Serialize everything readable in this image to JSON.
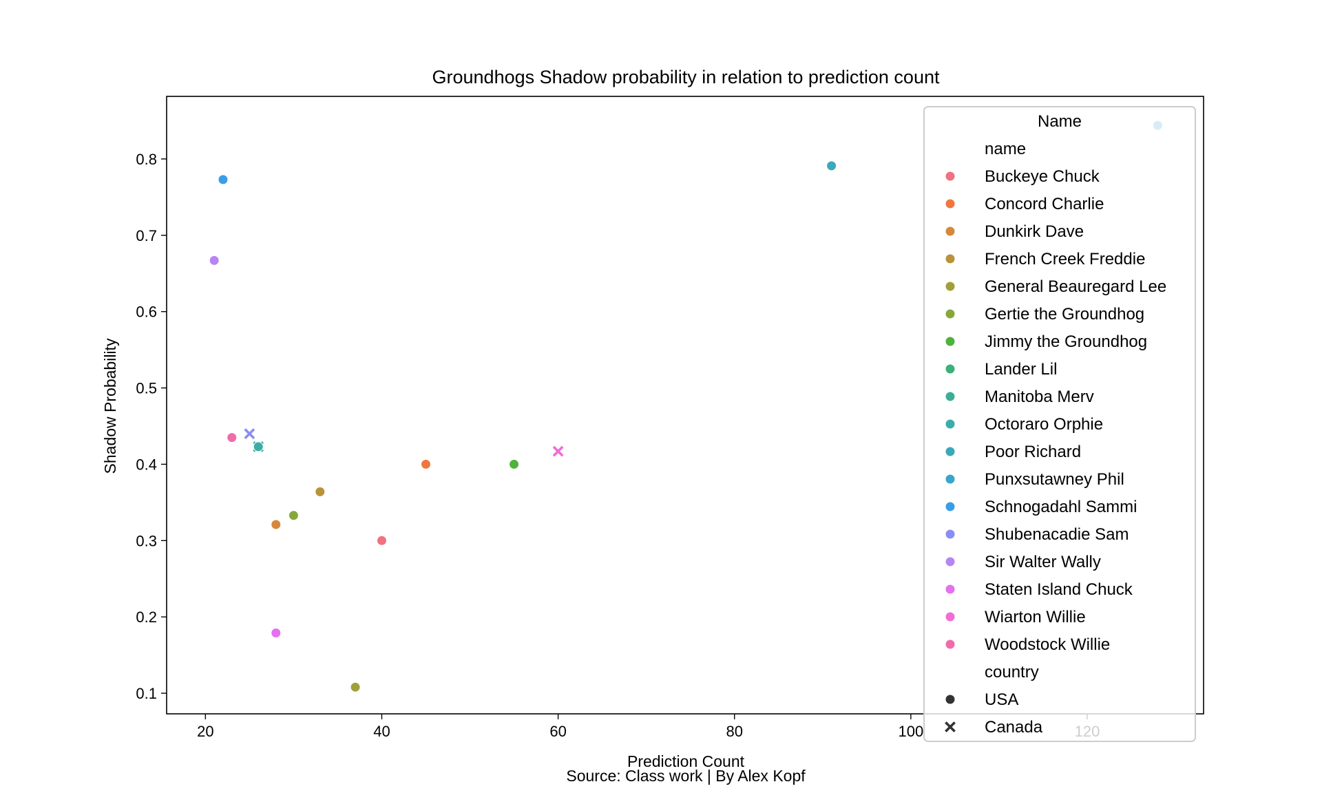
{
  "chart_data": {
    "type": "scatter",
    "title": "Groundhogs Shadow probability in relation to prediction count",
    "xlabel": "Prediction Count",
    "ylabel": "Shadow Probability",
    "caption": "Source: Class work | By Alex Kopf",
    "xlim": [
      15.6,
      133.2
    ],
    "ylim": [
      0.073,
      0.882
    ],
    "xticks": [
      20,
      40,
      60,
      80,
      100,
      120
    ],
    "yticks": [
      0.1,
      0.2,
      0.3,
      0.4,
      0.5,
      0.6,
      0.7,
      0.8
    ],
    "grid": false,
    "legend": {
      "placement": "upper right",
      "title": "Name",
      "hue_heading": "name",
      "style_heading": "country",
      "entries": [
        {
          "name": "Buckeye Chuck",
          "color": "#f0717f"
        },
        {
          "name": "Concord Charlie",
          "color": "#f0773f"
        },
        {
          "name": "Dunkirk Dave",
          "color": "#d5883a"
        },
        {
          "name": "French Creek Freddie",
          "color": "#b9923a"
        },
        {
          "name": "General Beauregard Lee",
          "color": "#a0a03a"
        },
        {
          "name": "Gertie the Groundhog",
          "color": "#86a83a"
        },
        {
          "name": "Jimmy the Groundhog",
          "color": "#4fb23a"
        },
        {
          "name": "Lander Lil",
          "color": "#3bb07a"
        },
        {
          "name": "Manitoba Merv",
          "color": "#3cae97"
        },
        {
          "name": "Octoraro Orphie",
          "color": "#3aada9"
        },
        {
          "name": "Poor Richard",
          "color": "#3aa9b8"
        },
        {
          "name": "Punxsutawney Phil",
          "color": "#3aa4cc"
        },
        {
          "name": "Schnogadahl Sammi",
          "color": "#3a9de8"
        },
        {
          "name": "Shubenacadie Sam",
          "color": "#8a8ef2"
        },
        {
          "name": "Sir Walter Wally",
          "color": "#b785f2"
        },
        {
          "name": "Staten Island Chuck",
          "color": "#e371f0"
        },
        {
          "name": "Wiarton Willie",
          "color": "#f26cd6"
        },
        {
          "name": "Woodstock Willie",
          "color": "#f06ba9"
        }
      ],
      "styles": [
        {
          "name": "USA",
          "marker": "circle"
        },
        {
          "name": "Canada",
          "marker": "x"
        }
      ]
    },
    "series": [
      {
        "name": "Buckeye Chuck",
        "country": "USA",
        "x": 40,
        "y": 0.3
      },
      {
        "name": "Concord Charlie",
        "country": "USA",
        "x": 45,
        "y": 0.4
      },
      {
        "name": "Dunkirk Dave",
        "country": "USA",
        "x": 28,
        "y": 0.321
      },
      {
        "name": "French Creek Freddie",
        "country": "USA",
        "x": 33,
        "y": 0.364
      },
      {
        "name": "General Beauregard Lee",
        "country": "USA",
        "x": 37,
        "y": 0.108
      },
      {
        "name": "Gertie the Groundhog",
        "country": "USA",
        "x": 30,
        "y": 0.333
      },
      {
        "name": "Jimmy the Groundhog",
        "country": "USA",
        "x": 55,
        "y": 0.4
      },
      {
        "name": "Lander Lil",
        "country": "USA",
        "x": 26,
        "y": 0.423
      },
      {
        "name": "Manitoba Merv",
        "country": "Canada",
        "x": 26,
        "y": 0.423
      },
      {
        "name": "Octoraro Orphie",
        "country": "USA",
        "x": 26,
        "y": 0.423
      },
      {
        "name": "Poor Richard",
        "country": "USA",
        "x": 91,
        "y": 0.791
      },
      {
        "name": "Punxsutawney Phil",
        "country": "USA",
        "x": 128,
        "y": 0.844
      },
      {
        "name": "Schnogadahl Sammi",
        "country": "USA",
        "x": 22,
        "y": 0.773
      },
      {
        "name": "Shubenacadie Sam",
        "country": "Canada",
        "x": 25,
        "y": 0.44
      },
      {
        "name": "Sir Walter Wally",
        "country": "USA",
        "x": 21,
        "y": 0.667
      },
      {
        "name": "Staten Island Chuck",
        "country": "USA",
        "x": 28,
        "y": 0.179
      },
      {
        "name": "Wiarton Willie",
        "country": "Canada",
        "x": 60,
        "y": 0.417
      },
      {
        "name": "Woodstock Willie",
        "country": "USA",
        "x": 23,
        "y": 0.435
      }
    ]
  }
}
